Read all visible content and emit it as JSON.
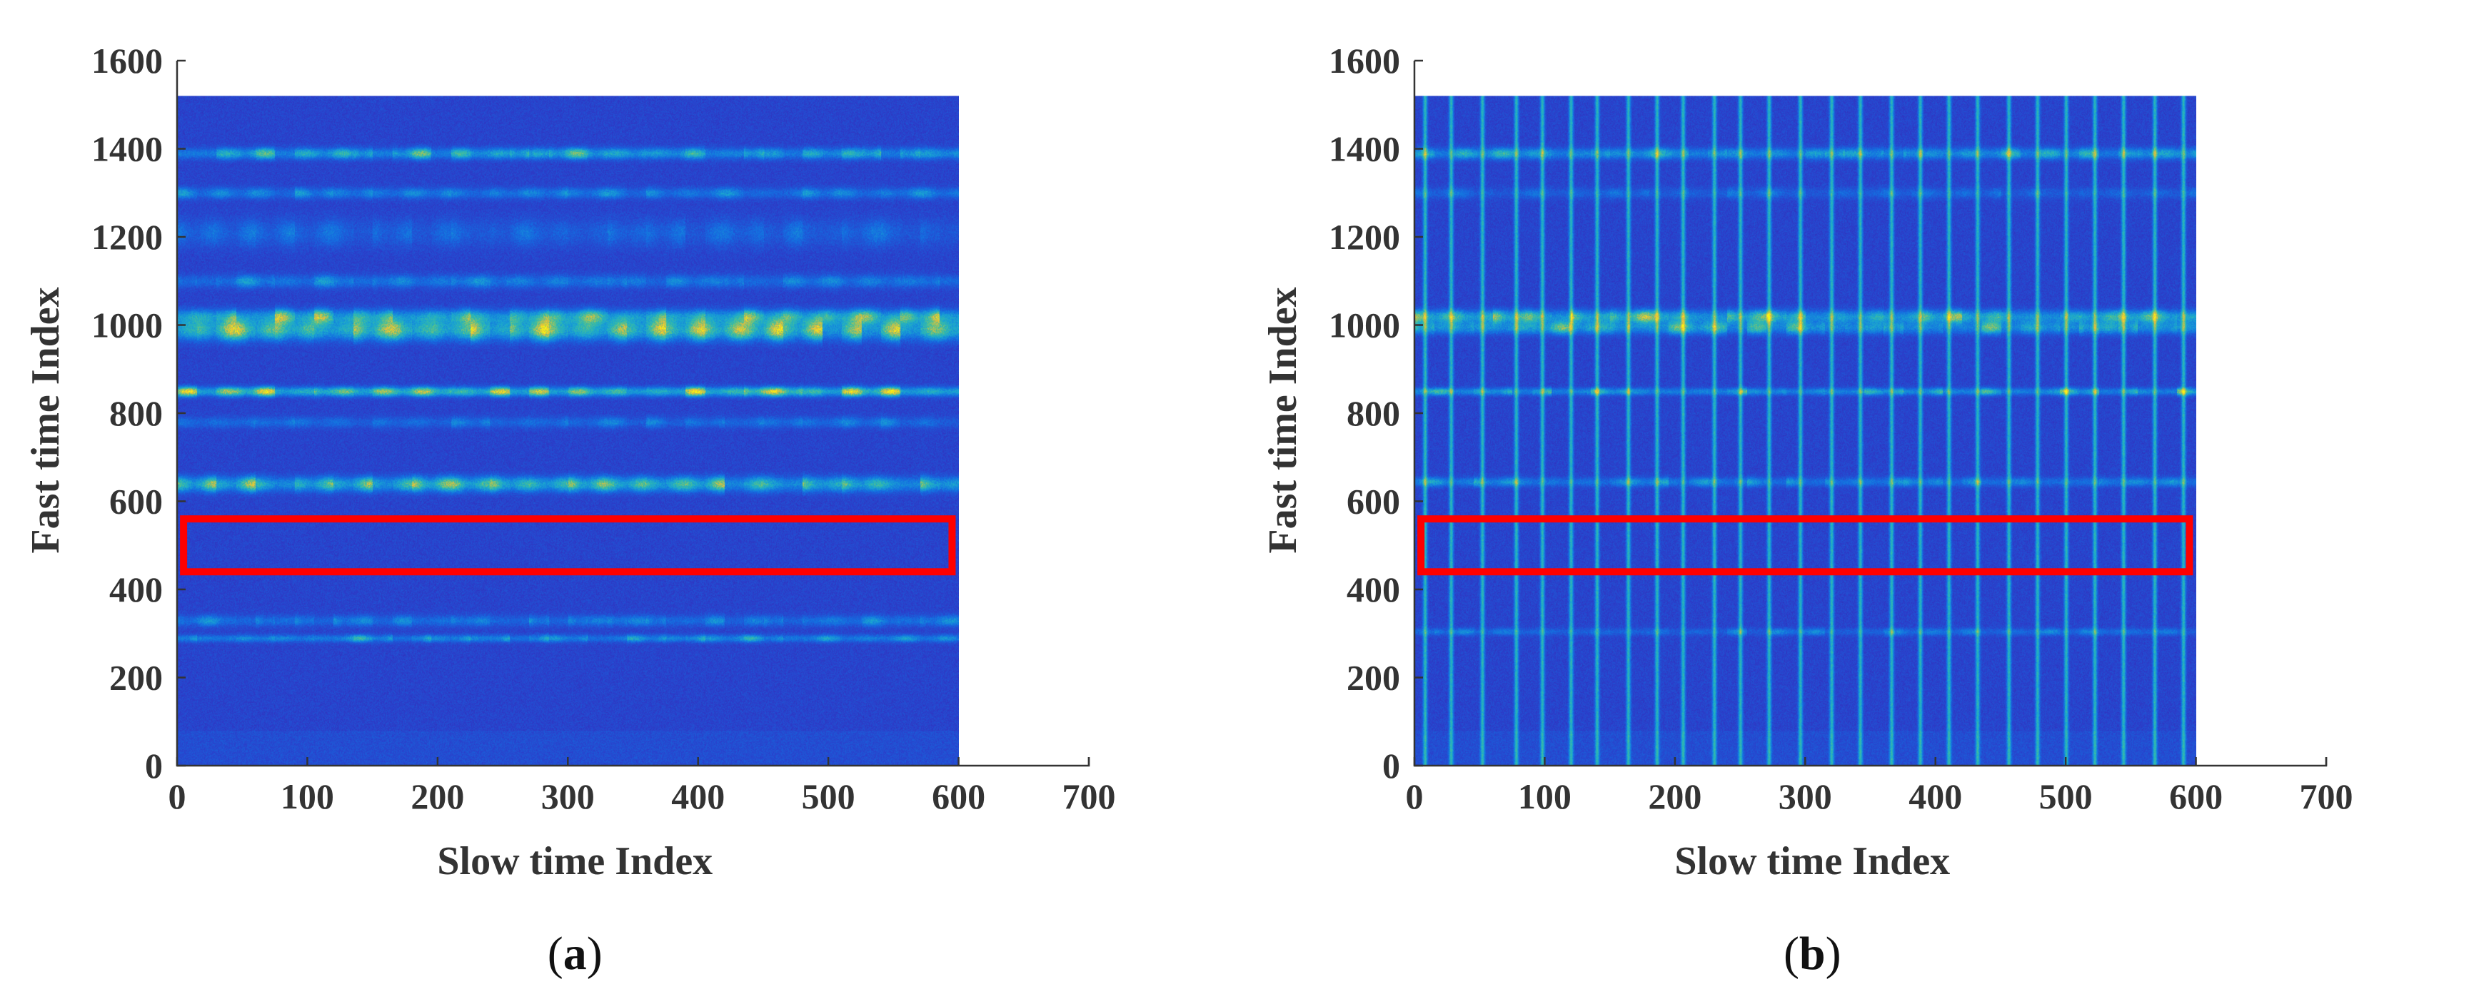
{
  "chart_data": [
    {
      "type": "heatmap",
      "panel_label": "a",
      "xlabel": "Slow time Index",
      "ylabel": "Fast time Index",
      "xlim": [
        0,
        700
      ],
      "ylim": [
        0,
        1600
      ],
      "xticks": [
        0,
        100,
        200,
        300,
        400,
        500,
        600,
        700
      ],
      "yticks": [
        0,
        200,
        400,
        600,
        800,
        1000,
        1200,
        1400,
        1600
      ],
      "image_extent": {
        "x": [
          0,
          600
        ],
        "y": [
          0,
          1520
        ]
      },
      "colormap": "parula",
      "bands": [
        {
          "y": 1390,
          "intensity": 0.45,
          "width": 12
        },
        {
          "y": 1300,
          "intensity": 0.25,
          "width": 12
        },
        {
          "y": 1210,
          "intensity": 0.15,
          "width": 30
        },
        {
          "y": 1100,
          "intensity": 0.25,
          "width": 14
        },
        {
          "y": 1020,
          "intensity": 0.55,
          "width": 16
        },
        {
          "y": 990,
          "intensity": 0.65,
          "width": 22
        },
        {
          "y": 850,
          "intensity": 0.7,
          "width": 10
        },
        {
          "y": 780,
          "intensity": 0.2,
          "width": 12
        },
        {
          "y": 640,
          "intensity": 0.55,
          "width": 16
        },
        {
          "y": 330,
          "intensity": 0.25,
          "width": 12
        },
        {
          "y": 290,
          "intensity": 0.35,
          "width": 8
        }
      ],
      "vertical_stripes": [],
      "highlight_box": {
        "x": [
          5,
          595
        ],
        "y": [
          440,
          560
        ],
        "color": "#ff0000"
      }
    },
    {
      "type": "heatmap",
      "panel_label": "b",
      "xlabel": "Slow time Index",
      "ylabel": "Fast time Index",
      "xlim": [
        0,
        700
      ],
      "ylim": [
        0,
        1600
      ],
      "xticks": [
        0,
        100,
        200,
        300,
        400,
        500,
        600,
        700
      ],
      "yticks": [
        0,
        200,
        400,
        600,
        800,
        1000,
        1200,
        1400,
        1600
      ],
      "image_extent": {
        "x": [
          0,
          600
        ],
        "y": [
          0,
          1520
        ]
      },
      "colormap": "parula",
      "bands": [
        {
          "y": 1390,
          "intensity": 0.4,
          "width": 12
        },
        {
          "y": 1300,
          "intensity": 0.15,
          "width": 12
        },
        {
          "y": 1020,
          "intensity": 0.55,
          "width": 14
        },
        {
          "y": 995,
          "intensity": 0.45,
          "width": 14
        },
        {
          "y": 850,
          "intensity": 0.45,
          "width": 8
        },
        {
          "y": 645,
          "intensity": 0.3,
          "width": 10
        },
        {
          "y": 305,
          "intensity": 0.2,
          "width": 8
        }
      ],
      "vertical_stripes": [
        8,
        28,
        52,
        78,
        98,
        120,
        140,
        164,
        186,
        206,
        230,
        250,
        272,
        296,
        320,
        342,
        366,
        388,
        410,
        432,
        456,
        478,
        500,
        522,
        544,
        568,
        590
      ],
      "highlight_box": {
        "x": [
          5,
          595
        ],
        "y": [
          440,
          560
        ],
        "color": "#ff0000"
      }
    }
  ]
}
